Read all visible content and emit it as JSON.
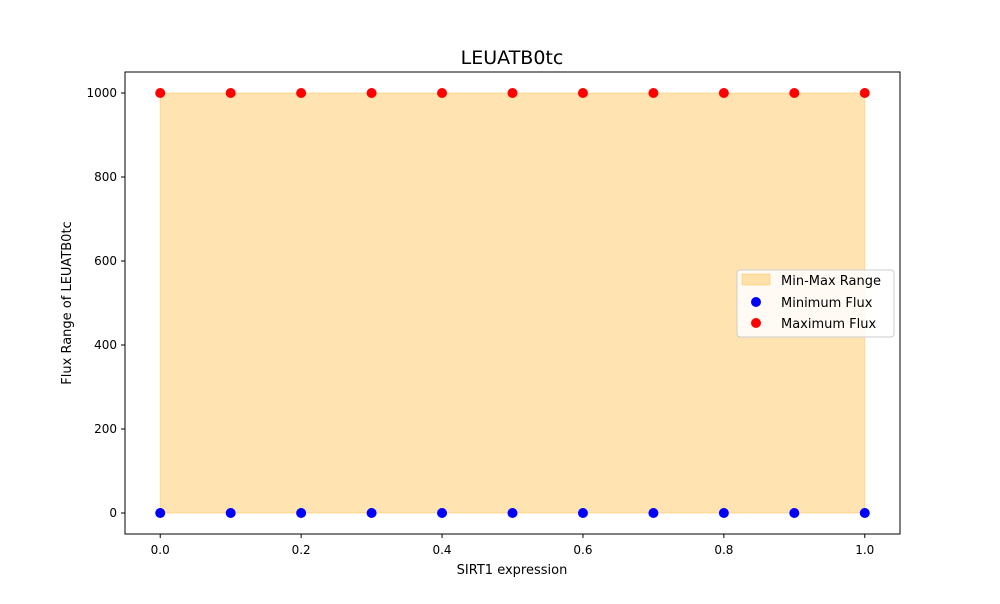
{
  "chart_data": {
    "type": "scatter",
    "title": "LEUATB0tc",
    "xlabel": "SIRT1 expression",
    "ylabel": "Flux Range of LEUATB0tc",
    "x": [
      0.0,
      0.1,
      0.2,
      0.3,
      0.4,
      0.5,
      0.6,
      0.7,
      0.8,
      0.9,
      1.0
    ],
    "xlim": [
      -0.05,
      1.05
    ],
    "ylim": [
      -50,
      1050
    ],
    "xticks": [
      0.0,
      0.2,
      0.4,
      0.6,
      0.8,
      1.0
    ],
    "xtick_labels": [
      "0.0",
      "0.2",
      "0.4",
      "0.6",
      "0.8",
      "1.0"
    ],
    "yticks": [
      0,
      200,
      400,
      600,
      800,
      1000
    ],
    "ytick_labels": [
      "0",
      "200",
      "400",
      "600",
      "800",
      "1000"
    ],
    "grid": false,
    "legend_position": "center-right",
    "fill_range": {
      "name": "Min-Max Range",
      "color": "#FFA500",
      "opacity": 0.3,
      "lower": [
        0,
        0,
        0,
        0,
        0,
        0,
        0,
        0,
        0,
        0,
        0
      ],
      "upper": [
        1000,
        1000,
        1000,
        1000,
        1000,
        1000,
        1000,
        1000,
        1000,
        1000,
        1000
      ]
    },
    "series": [
      {
        "name": "Minimum Flux",
        "color": "#0000FF",
        "values": [
          0,
          0,
          0,
          0,
          0,
          0,
          0,
          0,
          0,
          0,
          0
        ]
      },
      {
        "name": "Maximum Flux",
        "color": "#FF0000",
        "values": [
          1000,
          1000,
          1000,
          1000,
          1000,
          1000,
          1000,
          1000,
          1000,
          1000,
          1000
        ]
      }
    ]
  }
}
